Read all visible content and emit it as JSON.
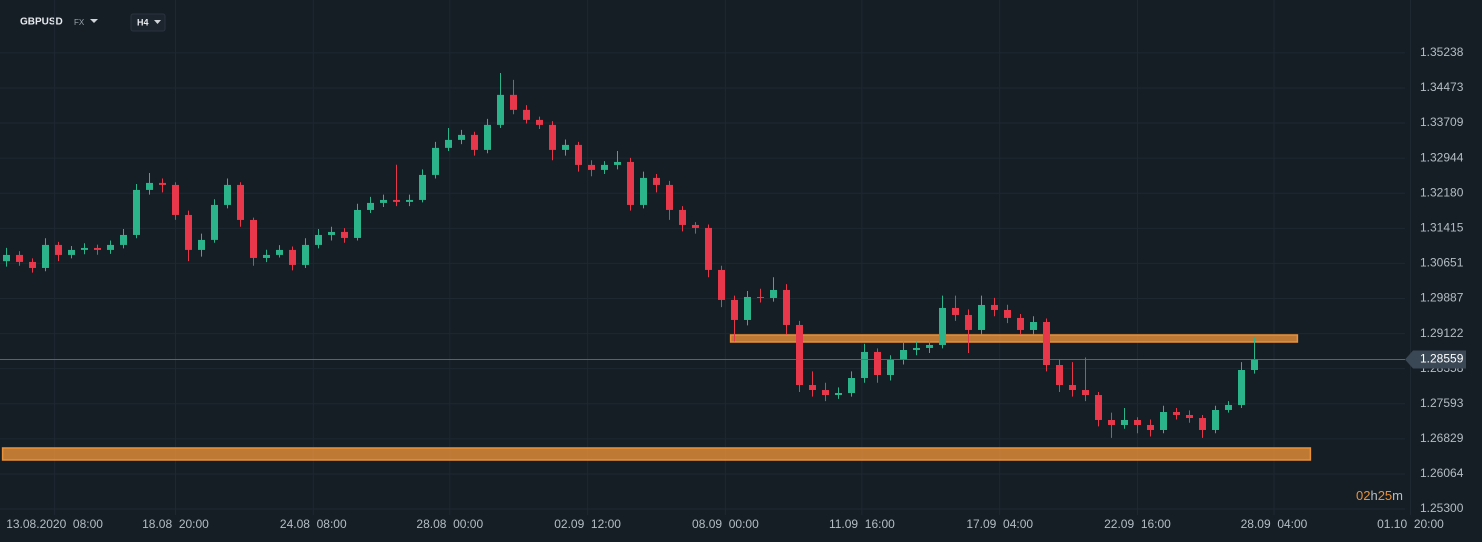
{
  "header": {
    "symbol": "GBPUSD",
    "market": "FX",
    "timeframe": "H4"
  },
  "chart_data": {
    "type": "candlestick",
    "colors": {
      "up": "#2bb389",
      "down": "#e8364b",
      "zone": "#e8913a"
    },
    "xlim": [
      -0.5,
      108.5
    ],
    "xticks": [
      {
        "value": 3.7,
        "label": "13.08.2020  08:00"
      },
      {
        "value": 13,
        "label": "18.08  20:00"
      },
      {
        "value": 23.6,
        "label": "24.08  08:00"
      },
      {
        "value": 34.1,
        "label": "28.08  00:00"
      },
      {
        "value": 44.7,
        "label": "02.09  12:00"
      },
      {
        "value": 55.3,
        "label": "08.09  00:00"
      },
      {
        "value": 65.8,
        "label": "11.09  16:00"
      },
      {
        "value": 76.4,
        "label": "17.09  04:00"
      },
      {
        "value": 87,
        "label": "22.09  16:00"
      },
      {
        "value": 97.5,
        "label": "28.09  04:00"
      },
      {
        "value": 108,
        "label": "01.10  20:00"
      }
    ],
    "ylim": [
      1.2517,
      1.3639
    ],
    "yticks": [
      1.35238,
      1.34473,
      1.33709,
      1.32944,
      {
        "value": 1.3218,
        "label": "1.32180"
      },
      1.31415,
      1.30651,
      1.29887,
      1.29122,
      1.28358,
      1.27593,
      1.26829,
      1.26064,
      {
        "value": 1.253,
        "label": "1.25300"
      }
    ],
    "grid": true,
    "last_price": 1.28559,
    "countdown": {
      "hours": "02",
      "h": "h",
      "minutes": "25",
      "m": "m"
    },
    "zones": [
      {
        "low": 1.28939,
        "high": 1.29092,
        "start": 55.7,
        "end": 99.3
      },
      {
        "low": 1.26368,
        "high": 1.2663,
        "start": -0.3,
        "end": 100.3
      }
    ],
    "candles": [
      [
        1.307,
        1.3099,
        1.3058,
        1.30836
      ],
      [
        1.30836,
        1.3092,
        1.306,
        1.30683
      ],
      [
        1.30683,
        1.3076,
        1.3045,
        1.30552
      ],
      [
        1.30552,
        1.312,
        1.3048,
        1.31054
      ],
      [
        1.31054,
        1.3112,
        1.307,
        1.30836
      ],
      [
        1.30836,
        1.3103,
        1.3076,
        1.30945
      ],
      [
        1.30945,
        1.3109,
        1.3085,
        1.30988
      ],
      [
        1.30988,
        1.3106,
        1.3084,
        1.30945
      ],
      [
        1.30945,
        1.3115,
        1.3086,
        1.31054
      ],
      [
        1.31054,
        1.314,
        1.3098,
        1.31271
      ],
      [
        1.31271,
        1.3238,
        1.312,
        1.32252
      ],
      [
        1.32252,
        1.3262,
        1.3215,
        1.32405
      ],
      [
        1.32405,
        1.325,
        1.322,
        1.32361
      ],
      [
        1.32361,
        1.3242,
        1.316,
        1.31707
      ],
      [
        1.31707,
        1.318,
        1.307,
        1.30945
      ],
      [
        1.30945,
        1.313,
        1.308,
        1.31163
      ],
      [
        1.31163,
        1.3205,
        1.311,
        1.31925
      ],
      [
        1.31925,
        1.325,
        1.3185,
        1.32361
      ],
      [
        1.32361,
        1.3242,
        1.3145,
        1.31598
      ],
      [
        1.31598,
        1.3165,
        1.306,
        1.3077
      ],
      [
        1.3077,
        1.3095,
        1.3068,
        1.30836
      ],
      [
        1.30836,
        1.3105,
        1.3078,
        1.30945
      ],
      [
        1.30945,
        1.3102,
        1.305,
        1.30618
      ],
      [
        1.30618,
        1.312,
        1.3055,
        1.31054
      ],
      [
        1.31054,
        1.314,
        1.3098,
        1.31271
      ],
      [
        1.31271,
        1.3145,
        1.3115,
        1.31337
      ],
      [
        1.31337,
        1.3142,
        1.311,
        1.31206
      ],
      [
        1.31206,
        1.3195,
        1.3115,
        1.31816
      ],
      [
        1.31816,
        1.321,
        1.3175,
        1.31969
      ],
      [
        1.31969,
        1.3215,
        1.3188,
        1.32034
      ],
      [
        1.32034,
        1.328,
        1.319,
        1.31991
      ],
      [
        1.31991,
        1.3215,
        1.319,
        1.32034
      ],
      [
        1.32034,
        1.327,
        1.3198,
        1.32579
      ],
      [
        1.32579,
        1.333,
        1.325,
        1.33168
      ],
      [
        1.33168,
        1.336,
        1.331,
        1.33342
      ],
      [
        1.33342,
        1.3356,
        1.3325,
        1.33451
      ],
      [
        1.33451,
        1.3352,
        1.33,
        1.33124
      ],
      [
        1.33124,
        1.338,
        1.3305,
        1.33669
      ],
      [
        1.33669,
        1.348,
        1.336,
        1.34323
      ],
      [
        1.34323,
        1.3465,
        1.339,
        1.33996
      ],
      [
        1.33996,
        1.341,
        1.337,
        1.33778
      ],
      [
        1.33778,
        1.3385,
        1.3358,
        1.33669
      ],
      [
        1.33669,
        1.3375,
        1.329,
        1.33124
      ],
      [
        1.33124,
        1.3335,
        1.33,
        1.33233
      ],
      [
        1.33233,
        1.333,
        1.3265,
        1.32797
      ],
      [
        1.32797,
        1.329,
        1.3255,
        1.32688
      ],
      [
        1.32688,
        1.3288,
        1.326,
        1.32797
      ],
      [
        1.32797,
        1.331,
        1.327,
        1.32862
      ],
      [
        1.32862,
        1.3295,
        1.318,
        1.31925
      ],
      [
        1.31925,
        1.3265,
        1.3185,
        1.32514
      ],
      [
        1.32514,
        1.326,
        1.322,
        1.32361
      ],
      [
        1.32361,
        1.3245,
        1.316,
        1.31816
      ],
      [
        1.31816,
        1.319,
        1.3135,
        1.31489
      ],
      [
        1.31489,
        1.3155,
        1.313,
        1.31424
      ],
      [
        1.31424,
        1.315,
        1.3035,
        1.30509
      ],
      [
        1.30509,
        1.306,
        1.297,
        1.29855
      ],
      [
        1.29855,
        1.2995,
        1.2895,
        1.29419
      ],
      [
        1.29419,
        1.3005,
        1.293,
        1.2992
      ],
      [
        1.2992,
        1.301,
        1.298,
        1.29898
      ],
      [
        1.29898,
        1.3035,
        1.2982,
        1.30073
      ],
      [
        1.30073,
        1.302,
        1.291,
        1.2931
      ],
      [
        1.2931,
        1.294,
        1.2785,
        1.28002
      ],
      [
        1.28002,
        1.283,
        1.2775,
        1.27893
      ],
      [
        1.27893,
        1.2805,
        1.2765,
        1.27784
      ],
      [
        1.27784,
        1.2795,
        1.277,
        1.27828
      ],
      [
        1.27828,
        1.283,
        1.2775,
        1.28155
      ],
      [
        1.28155,
        1.289,
        1.2805,
        1.28722
      ],
      [
        1.28722,
        1.288,
        1.2805,
        1.2822
      ],
      [
        1.2822,
        1.2865,
        1.281,
        1.28547
      ],
      [
        1.28547,
        1.2895,
        1.2845,
        1.28765
      ],
      [
        1.28765,
        1.2895,
        1.2865,
        1.28809
      ],
      [
        1.28809,
        1.29,
        1.287,
        1.28874
      ],
      [
        1.28874,
        1.2995,
        1.288,
        1.29681
      ],
      [
        1.29681,
        1.2995,
        1.294,
        1.29528
      ],
      [
        1.29528,
        1.2965,
        1.287,
        1.29201
      ],
      [
        1.29201,
        1.2995,
        1.291,
        1.29746
      ],
      [
        1.29746,
        1.299,
        1.295,
        1.29637
      ],
      [
        1.29637,
        1.2975,
        1.2935,
        1.29463
      ],
      [
        1.29463,
        1.2955,
        1.291,
        1.29201
      ],
      [
        1.29201,
        1.295,
        1.291,
        1.29375
      ],
      [
        1.29375,
        1.2945,
        1.283,
        1.28438
      ],
      [
        1.28438,
        1.2855,
        1.2785,
        1.28002
      ],
      [
        1.28002,
        1.285,
        1.2775,
        1.27893
      ],
      [
        1.27893,
        1.286,
        1.2765,
        1.27784
      ],
      [
        1.27784,
        1.2785,
        1.271,
        1.2724
      ],
      [
        1.2724,
        1.274,
        1.2685,
        1.27131
      ],
      [
        1.27131,
        1.275,
        1.2705,
        1.2724
      ],
      [
        1.2724,
        1.273,
        1.2695,
        1.27131
      ],
      [
        1.27131,
        1.2725,
        1.2688,
        1.27022
      ],
      [
        1.27022,
        1.2755,
        1.2695,
        1.27414
      ],
      [
        1.27414,
        1.275,
        1.2725,
        1.27349
      ],
      [
        1.27349,
        1.2745,
        1.2718,
        1.27283
      ],
      [
        1.27283,
        1.2735,
        1.2685,
        1.27022
      ],
      [
        1.27022,
        1.2755,
        1.2695,
        1.27458
      ],
      [
        1.27458,
        1.2765,
        1.274,
        1.27567
      ],
      [
        1.27567,
        1.285,
        1.275,
        1.28329
      ],
      [
        1.28329,
        1.2905,
        1.2825,
        1.28559
      ]
    ]
  }
}
